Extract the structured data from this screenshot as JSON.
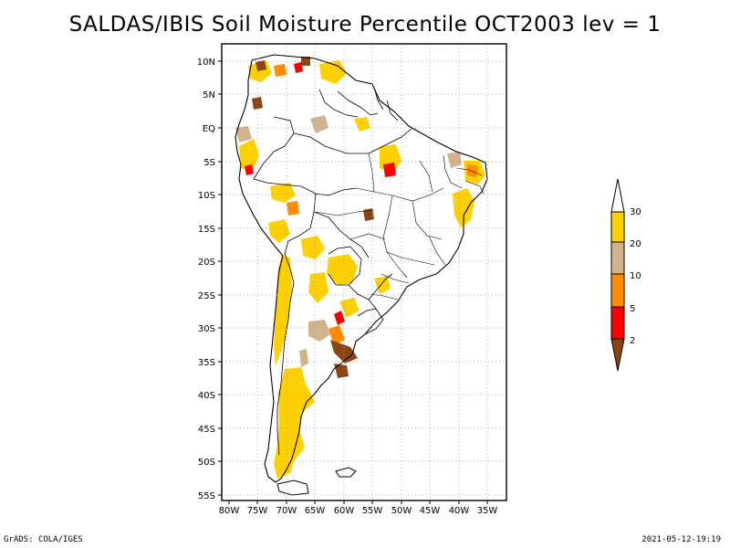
{
  "title": "SALDAS/IBIS Soil Moisture Percentile OCT2003 lev = 1",
  "map": {
    "lon_range": [
      -80,
      -30
    ],
    "lat_range": [
      -56,
      12
    ],
    "grid_lines": "dotted",
    "lat_ticks": [
      "10N",
      "5N",
      "EQ",
      "5S",
      "10S",
      "15S",
      "20S",
      "25S",
      "30S",
      "35S",
      "40S",
      "45S",
      "50S",
      "55S"
    ],
    "lon_ticks": [
      "80W",
      "75W",
      "70W",
      "65W",
      "60W",
      "55W",
      "50W",
      "45W",
      "40W",
      "35W"
    ]
  },
  "colorbar": {
    "labels": [
      "30",
      "20",
      "10",
      "5",
      "2"
    ],
    "colors": {
      "above_30": "#ffffff",
      "20_30": "#ffd000",
      "10_20": "#d2b48c",
      "5_10": "#ff8c00",
      "2_5": "#ff0000",
      "below_2": "#8b4513"
    }
  },
  "footer": {
    "left": "GrADS: COLA/IGES",
    "right": "2021-05-12-19:19"
  }
}
